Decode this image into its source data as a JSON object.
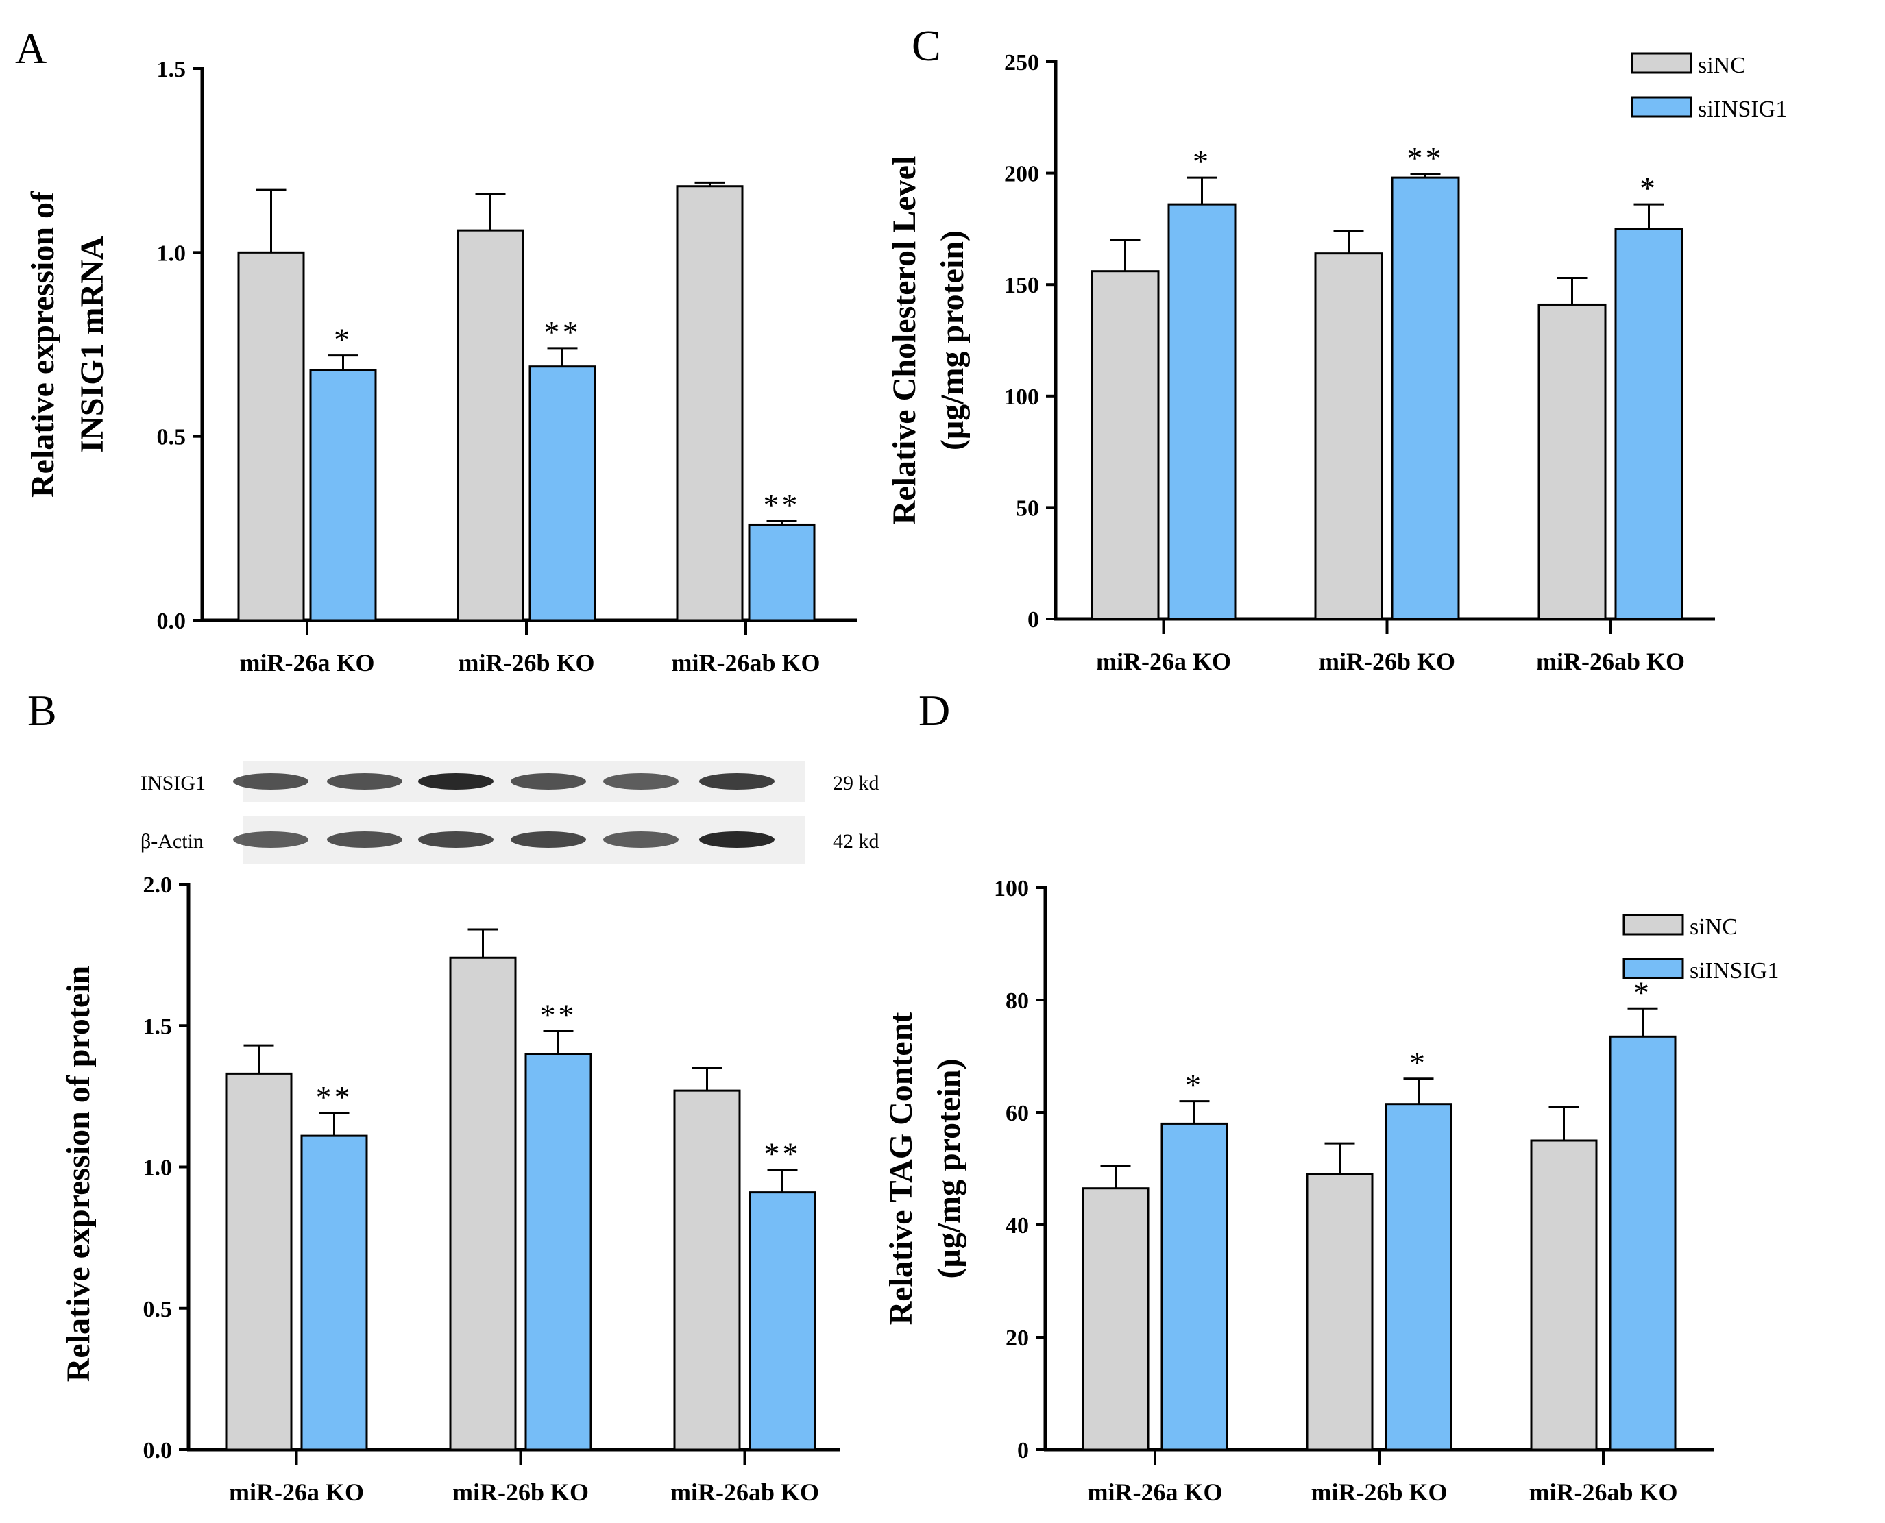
{
  "figure": {
    "colors": {
      "siNC": "#d3d3d3",
      "siINSIG1": "#76bdf7",
      "axis": "#000000"
    },
    "legend": {
      "siNC": "siNC",
      "siINSIG1": "siINSIG1"
    },
    "blot": {
      "rows": [
        {
          "name": "INSIG1",
          "size": "29 kd"
        },
        {
          "name": "β-Actin",
          "size": "42 kd"
        }
      ]
    }
  },
  "chart_data": [
    {
      "panel": "A",
      "type": "bar",
      "title": "",
      "ylabel_lines": [
        "Relative expression of",
        "INSIG1 mRNA"
      ],
      "xlabel": "",
      "ylim": [
        0,
        1.5
      ],
      "yticks": [
        "0.0",
        "0.5",
        "1.0",
        "1.5"
      ],
      "categories": [
        "miR-26a KO",
        "miR-26b KO",
        "miR-26ab KO"
      ],
      "legend": "none",
      "series": [
        {
          "name": "siNC",
          "values": [
            1.0,
            1.06,
            1.18
          ],
          "errors": [
            0.17,
            0.1,
            0.01
          ],
          "sig": [
            "",
            "",
            ""
          ]
        },
        {
          "name": "siINSIG1",
          "values": [
            0.68,
            0.69,
            0.26
          ],
          "errors": [
            0.04,
            0.05,
            0.01
          ],
          "sig": [
            "*",
            "**",
            "**"
          ]
        }
      ]
    },
    {
      "panel": "B",
      "type": "bar",
      "title": "",
      "ylabel_lines": [
        "Relative expression of protein"
      ],
      "xlabel": "",
      "ylim": [
        0,
        2.0
      ],
      "yticks": [
        "0.0",
        "0.5",
        "1.0",
        "1.5",
        "2.0"
      ],
      "categories": [
        "miR-26a KO",
        "miR-26b KO",
        "miR-26ab KO"
      ],
      "legend": "none",
      "series": [
        {
          "name": "siNC",
          "values": [
            1.33,
            1.74,
            1.27
          ],
          "errors": [
            0.1,
            0.1,
            0.08
          ],
          "sig": [
            "",
            "",
            ""
          ]
        },
        {
          "name": "siINSIG1",
          "values": [
            1.11,
            1.4,
            0.91
          ],
          "errors": [
            0.08,
            0.08,
            0.08
          ],
          "sig": [
            "**",
            "**",
            "**"
          ]
        }
      ]
    },
    {
      "panel": "C",
      "type": "bar",
      "title": "",
      "ylabel_lines": [
        "Relative Cholesterol Level",
        "(μg/mg protein)"
      ],
      "xlabel": "",
      "ylim": [
        0,
        250
      ],
      "yticks": [
        "0",
        "50",
        "100",
        "150",
        "200",
        "250"
      ],
      "categories": [
        "miR-26a KO",
        "miR-26b KO",
        "miR-26ab KO"
      ],
      "legend": "top-right",
      "series": [
        {
          "name": "siNC",
          "values": [
            156,
            164,
            141
          ],
          "errors": [
            14,
            10,
            12
          ],
          "sig": [
            "",
            "",
            ""
          ]
        },
        {
          "name": "siINSIG1",
          "values": [
            186,
            198,
            175
          ],
          "errors": [
            12,
            1.5,
            11
          ],
          "sig": [
            "*",
            "**",
            "*"
          ]
        }
      ]
    },
    {
      "panel": "D",
      "type": "bar",
      "title": "",
      "ylabel_lines": [
        "Relative TAG Content",
        "(μg/mg protein)"
      ],
      "xlabel": "",
      "ylim": [
        0,
        100
      ],
      "yticks": [
        "0",
        "20",
        "40",
        "60",
        "80",
        "100"
      ],
      "categories": [
        "miR-26a KO",
        "miR-26b KO",
        "miR-26ab KO"
      ],
      "legend": "top-right",
      "series": [
        {
          "name": "siNC",
          "values": [
            46.5,
            49,
            55
          ],
          "errors": [
            4,
            5.5,
            6
          ],
          "sig": [
            "",
            "",
            ""
          ]
        },
        {
          "name": "siINSIG1",
          "values": [
            58,
            61.5,
            73.5
          ],
          "errors": [
            4,
            4.5,
            5
          ],
          "sig": [
            "*",
            "*",
            "*"
          ]
        }
      ]
    }
  ]
}
